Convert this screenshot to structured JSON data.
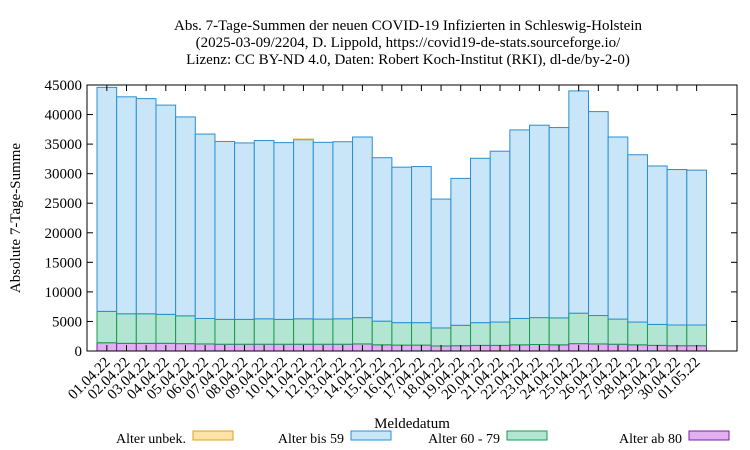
{
  "chart_data": {
    "type": "bar",
    "stacked": true,
    "title": [
      "Abs. 7-Tage-Summen der neuen COVID-19 Infizierten in Schleswig-Holstein",
      "(2025-03-09/2204, D. Lippold, https://covid19-de-stats.sourceforge.io/",
      "Lizenz: CC BY-ND 4.0, Daten: Robert Koch-Institut (RKI), dl-de/by-2-0)"
    ],
    "xlabel": "Meldedatum",
    "ylabel": "Absolute 7-Tage-Summe",
    "ylim": [
      0,
      45000
    ],
    "yticks": [
      0,
      5000,
      10000,
      15000,
      20000,
      25000,
      30000,
      35000,
      40000,
      45000
    ],
    "grid": false,
    "legend_position": "bottom",
    "categories": [
      "01.04.22",
      "02.04.22",
      "03.04.22",
      "04.04.22",
      "05.04.22",
      "06.04.22",
      "07.04.22",
      "08.04.22",
      "09.04.22",
      "10.04.22",
      "11.04.22",
      "12.04.22",
      "13.04.22",
      "14.04.22",
      "15.04.22",
      "16.04.22",
      "17.04.22",
      "18.04.22",
      "19.04.22",
      "20.04.22",
      "21.04.22",
      "22.04.22",
      "23.04.22",
      "24.04.22",
      "25.04.22",
      "26.04.22",
      "27.04.22",
      "28.04.22",
      "29.04.22",
      "30.04.22",
      "01.05.22"
    ],
    "series": [
      {
        "name": "Alter ab 80",
        "color": "#e0b0f0",
        "stroke": "#7a1fa2",
        "values": [
          1400,
          1300,
          1300,
          1300,
          1250,
          1200,
          1150,
          1150,
          1150,
          1150,
          1150,
          1150,
          1150,
          1200,
          1050,
          1000,
          1000,
          850,
          900,
          950,
          950,
          1050,
          1100,
          1050,
          1250,
          1200,
          1150,
          1050,
          950,
          900,
          900
        ]
      },
      {
        "name": "Alter 60 - 79",
        "color": "#b3e6d2",
        "stroke": "#1a9a4c",
        "values": [
          5300,
          5000,
          5000,
          4900,
          4700,
          4300,
          4200,
          4200,
          4300,
          4200,
          4300,
          4250,
          4300,
          4450,
          4000,
          3800,
          3800,
          3050,
          3450,
          3850,
          3950,
          4450,
          4550,
          4550,
          5150,
          4800,
          4250,
          3850,
          3550,
          3500,
          3500
        ]
      },
      {
        "name": "Alter bis 59",
        "color": "#c8e6f8",
        "stroke": "#2a8fd0",
        "values": [
          37900,
          36700,
          36400,
          35400,
          33650,
          31200,
          30100,
          29850,
          30150,
          29900,
          30300,
          29900,
          29950,
          30550,
          27650,
          26300,
          26400,
          21800,
          24850,
          27800,
          28900,
          31900,
          32550,
          32200,
          37600,
          34500,
          30800,
          28300,
          26800,
          26300,
          26200
        ]
      },
      {
        "name": "Alter unbek.",
        "color": "#fde3a7",
        "stroke": "#e0a020",
        "values": [
          0,
          0,
          0,
          0,
          0,
          0,
          0,
          0,
          0,
          0,
          100,
          0,
          0,
          0,
          0,
          0,
          0,
          0,
          0,
          0,
          0,
          0,
          0,
          0,
          0,
          0,
          0,
          0,
          0,
          0,
          0
        ]
      }
    ],
    "legend_order": [
      "Alter unbek.",
      "Alter bis 59",
      "Alter 60 - 79",
      "Alter ab 80"
    ]
  }
}
